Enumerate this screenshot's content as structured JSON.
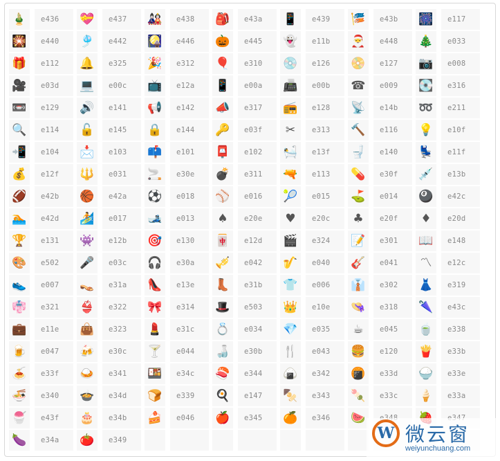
{
  "emoji_table": {
    "cells": [
      {
        "code": "e436",
        "glyph": "🎍"
      },
      {
        "code": "e437",
        "glyph": "💝"
      },
      {
        "code": "e438",
        "glyph": "🎎"
      },
      {
        "code": "e43a",
        "glyph": "🎒"
      },
      {
        "code": "e439",
        "glyph": "📱"
      },
      {
        "code": "e43b",
        "glyph": "🎏"
      },
      {
        "code": "e117",
        "glyph": "🎆"
      },
      {
        "code": "e440",
        "glyph": "🎇"
      },
      {
        "code": "e442",
        "glyph": "🎐"
      },
      {
        "code": "e446",
        "glyph": "🎑"
      },
      {
        "code": "e445",
        "glyph": "🎃"
      },
      {
        "code": "e11b",
        "glyph": "👻"
      },
      {
        "code": "e448",
        "glyph": "🎅"
      },
      {
        "code": "e033",
        "glyph": "🎄"
      },
      {
        "code": "e112",
        "glyph": "🎁"
      },
      {
        "code": "e325",
        "glyph": "🔔"
      },
      {
        "code": "e312",
        "glyph": "🎉"
      },
      {
        "code": "e310",
        "glyph": "🎈"
      },
      {
        "code": "e126",
        "glyph": "💿"
      },
      {
        "code": "e127",
        "glyph": "📀"
      },
      {
        "code": "e008",
        "glyph": "📷"
      },
      {
        "code": "e03d",
        "glyph": "🎥"
      },
      {
        "code": "e00c",
        "glyph": "💻"
      },
      {
        "code": "e12a",
        "glyph": "📺"
      },
      {
        "code": "e00a",
        "glyph": "📱"
      },
      {
        "code": "e00b",
        "glyph": "📠"
      },
      {
        "code": "e009",
        "glyph": "☎"
      },
      {
        "code": "e316",
        "glyph": "💽"
      },
      {
        "code": "e129",
        "glyph": "📼"
      },
      {
        "code": "e141",
        "glyph": "🔊"
      },
      {
        "code": "e142",
        "glyph": "📢"
      },
      {
        "code": "e317",
        "glyph": "📣"
      },
      {
        "code": "e128",
        "glyph": "📻"
      },
      {
        "code": "e14b",
        "glyph": "📡"
      },
      {
        "code": "e211",
        "glyph": "➿"
      },
      {
        "code": "e114",
        "glyph": "🔍"
      },
      {
        "code": "e145",
        "glyph": "🔓"
      },
      {
        "code": "e144",
        "glyph": "🔒"
      },
      {
        "code": "e03f",
        "glyph": "🔑"
      },
      {
        "code": "e313",
        "glyph": "✂"
      },
      {
        "code": "e116",
        "glyph": "🔨"
      },
      {
        "code": "e10f",
        "glyph": "💡"
      },
      {
        "code": "e104",
        "glyph": "📲"
      },
      {
        "code": "e103",
        "glyph": "📩"
      },
      {
        "code": "e101",
        "glyph": "📫"
      },
      {
        "code": "e102",
        "glyph": "📮"
      },
      {
        "code": "e13f",
        "glyph": "🛀"
      },
      {
        "code": "e140",
        "glyph": "🚽"
      },
      {
        "code": "e11f",
        "glyph": "💺"
      },
      {
        "code": "e12f",
        "glyph": "💰"
      },
      {
        "code": "e031",
        "glyph": "🔱"
      },
      {
        "code": "e30e",
        "glyph": "🚬"
      },
      {
        "code": "e311",
        "glyph": "💣"
      },
      {
        "code": "e113",
        "glyph": "🔫"
      },
      {
        "code": "e30f",
        "glyph": "💊"
      },
      {
        "code": "e13b",
        "glyph": "💉"
      },
      {
        "code": "e42b",
        "glyph": "🏈"
      },
      {
        "code": "e42a",
        "glyph": "🏀"
      },
      {
        "code": "e018",
        "glyph": "⚽"
      },
      {
        "code": "e016",
        "glyph": "⚾"
      },
      {
        "code": "e015",
        "glyph": "🎾"
      },
      {
        "code": "e014",
        "glyph": "⛳"
      },
      {
        "code": "e42c",
        "glyph": "🎱"
      },
      {
        "code": "e42d",
        "glyph": "🏊"
      },
      {
        "code": "e017",
        "glyph": "🏄"
      },
      {
        "code": "e013",
        "glyph": "🎿"
      },
      {
        "code": "e20e",
        "glyph": "♠"
      },
      {
        "code": "e20c",
        "glyph": "♥"
      },
      {
        "code": "e20f",
        "glyph": "♣"
      },
      {
        "code": "e20d",
        "glyph": "♦"
      },
      {
        "code": "e131",
        "glyph": "🏆"
      },
      {
        "code": "e12b",
        "glyph": "👾"
      },
      {
        "code": "e130",
        "glyph": "🎯"
      },
      {
        "code": "e12d",
        "glyph": "🀄"
      },
      {
        "code": "e324",
        "glyph": "🎬"
      },
      {
        "code": "e301",
        "glyph": "📝"
      },
      {
        "code": "e148",
        "glyph": "📖"
      },
      {
        "code": "e502",
        "glyph": "🎨"
      },
      {
        "code": "e03c",
        "glyph": "🎤"
      },
      {
        "code": "e30a",
        "glyph": "🎧"
      },
      {
        "code": "e042",
        "glyph": "🎺"
      },
      {
        "code": "e040",
        "glyph": "🎷"
      },
      {
        "code": "e041",
        "glyph": "🎸"
      },
      {
        "code": "e12c",
        "glyph": "〽"
      },
      {
        "code": "e007",
        "glyph": "👟"
      },
      {
        "code": "e31a",
        "glyph": "👡"
      },
      {
        "code": "e13e",
        "glyph": "👠"
      },
      {
        "code": "e31b",
        "glyph": "👢"
      },
      {
        "code": "e006",
        "glyph": "👕"
      },
      {
        "code": "e302",
        "glyph": "👔"
      },
      {
        "code": "e319",
        "glyph": "👗"
      },
      {
        "code": "e321",
        "glyph": "👘"
      },
      {
        "code": "e322",
        "glyph": "👙"
      },
      {
        "code": "e314",
        "glyph": "🎀"
      },
      {
        "code": "e503",
        "glyph": "🎩"
      },
      {
        "code": "e10e",
        "glyph": "👑"
      },
      {
        "code": "e318",
        "glyph": "👒"
      },
      {
        "code": "e43c",
        "glyph": "🌂"
      },
      {
        "code": "e11e",
        "glyph": "💼"
      },
      {
        "code": "e323",
        "glyph": "👜"
      },
      {
        "code": "e31c",
        "glyph": "💄"
      },
      {
        "code": "e034",
        "glyph": "💍"
      },
      {
        "code": "e035",
        "glyph": "💎"
      },
      {
        "code": "e045",
        "glyph": "☕"
      },
      {
        "code": "e338",
        "glyph": "🍵"
      },
      {
        "code": "e047",
        "glyph": "🍺"
      },
      {
        "code": "e30c",
        "glyph": "🍻"
      },
      {
        "code": "e044",
        "glyph": "🍸"
      },
      {
        "code": "e30b",
        "glyph": "🍶"
      },
      {
        "code": "e043",
        "glyph": "🍴"
      },
      {
        "code": "e120",
        "glyph": "🍔"
      },
      {
        "code": "e33b",
        "glyph": "🍟"
      },
      {
        "code": "e33f",
        "glyph": "🍝"
      },
      {
        "code": "e341",
        "glyph": "🍛"
      },
      {
        "code": "e34c",
        "glyph": "🍱"
      },
      {
        "code": "e344",
        "glyph": "🍣"
      },
      {
        "code": "e342",
        "glyph": "🍙"
      },
      {
        "code": "e33d",
        "glyph": "🍘"
      },
      {
        "code": "e33e",
        "glyph": "🍚"
      },
      {
        "code": "e340",
        "glyph": "🍜"
      },
      {
        "code": "e34d",
        "glyph": "🍲"
      },
      {
        "code": "e339",
        "glyph": "🍞"
      },
      {
        "code": "e147",
        "glyph": "🍳"
      },
      {
        "code": "e343",
        "glyph": "🍢"
      },
      {
        "code": "e33c",
        "glyph": "🍡"
      },
      {
        "code": "e33a",
        "glyph": "🍦"
      },
      {
        "code": "e43f",
        "glyph": "🍧"
      },
      {
        "code": "e34b",
        "glyph": "🎂"
      },
      {
        "code": "e046",
        "glyph": "🍰"
      },
      {
        "code": "e345",
        "glyph": "🍎"
      },
      {
        "code": "e346",
        "glyph": "🍊"
      },
      {
        "code": "e348",
        "glyph": "🍉"
      },
      {
        "code": "e347",
        "glyph": "🍓"
      },
      {
        "code": "e34a",
        "glyph": "🍆"
      },
      {
        "code": "e349",
        "glyph": "🍅"
      },
      {
        "code": "",
        "glyph": ""
      },
      {
        "code": "",
        "glyph": ""
      },
      {
        "code": "",
        "glyph": ""
      },
      {
        "code": "",
        "glyph": ""
      },
      {
        "code": "",
        "glyph": ""
      }
    ]
  },
  "watermark": {
    "logo_letter": "W",
    "logo_text": "微云窗",
    "url": "weiyunchuang.com"
  }
}
